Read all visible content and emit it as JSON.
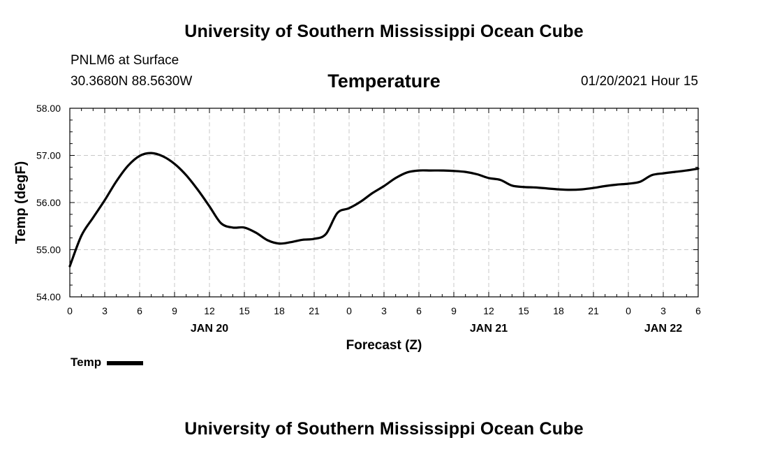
{
  "page": {
    "title_top": "University of Southern Mississippi Ocean Cube",
    "title_bottom": "University of Southern Mississippi Ocean Cube",
    "station": "PNLM6 at Surface",
    "coords": "30.3680N 88.5630W",
    "variable": "Temperature",
    "datetime": "01/20/2021 Hour 15"
  },
  "chart_data": {
    "type": "line",
    "title": "Temperature",
    "xlabel": "Forecast (Z)",
    "ylabel": "Temp (degF)",
    "ylim": [
      54.0,
      58.0
    ],
    "xlim": [
      0,
      54
    ],
    "y_ticks": [
      "54.00",
      "55.00",
      "56.00",
      "57.00",
      "58.00"
    ],
    "y_tick_values": [
      54,
      55,
      56,
      57,
      58
    ],
    "x_tick_hours": [
      0,
      3,
      6,
      9,
      12,
      15,
      18,
      21,
      24,
      27,
      30,
      33,
      36,
      39,
      42,
      45,
      48,
      51,
      54
    ],
    "x_tick_labels": [
      "0",
      "3",
      "6",
      "9",
      "12",
      "15",
      "18",
      "21",
      "0",
      "3",
      "6",
      "9",
      "12",
      "15",
      "18",
      "21",
      "0",
      "3",
      "6"
    ],
    "day_labels": [
      {
        "hour": 12,
        "label": "JAN 20"
      },
      {
        "hour": 36,
        "label": "JAN 21"
      },
      {
        "hour": 51,
        "label": "JAN 22"
      }
    ],
    "grid": true,
    "legend": "bottom-left",
    "series": [
      {
        "name": "Temp",
        "x": [
          0,
          1,
          2,
          3,
          4,
          5,
          6,
          7,
          8,
          9,
          10,
          11,
          12,
          13,
          14,
          15,
          16,
          17,
          18,
          19,
          20,
          21,
          22,
          23,
          24,
          25,
          26,
          27,
          28,
          29,
          30,
          31,
          32,
          33,
          34,
          35,
          36,
          37,
          38,
          39,
          40,
          41,
          42,
          43,
          44,
          45,
          46,
          47,
          48,
          49,
          50,
          51,
          52,
          53,
          54
        ],
        "values": [
          54.65,
          55.3,
          55.68,
          56.05,
          56.45,
          56.78,
          56.99,
          57.05,
          56.98,
          56.82,
          56.58,
          56.27,
          55.92,
          55.56,
          55.47,
          55.47,
          55.36,
          55.2,
          55.13,
          55.16,
          55.21,
          55.23,
          55.33,
          55.78,
          55.88,
          56.02,
          56.2,
          56.35,
          56.52,
          56.64,
          56.68,
          56.68,
          56.68,
          56.67,
          56.65,
          56.6,
          56.52,
          56.48,
          56.36,
          56.33,
          56.32,
          56.3,
          56.28,
          56.27,
          56.28,
          56.31,
          56.35,
          56.38,
          56.4,
          56.44,
          56.58,
          56.62,
          56.65,
          56.68,
          56.72
        ]
      }
    ]
  }
}
